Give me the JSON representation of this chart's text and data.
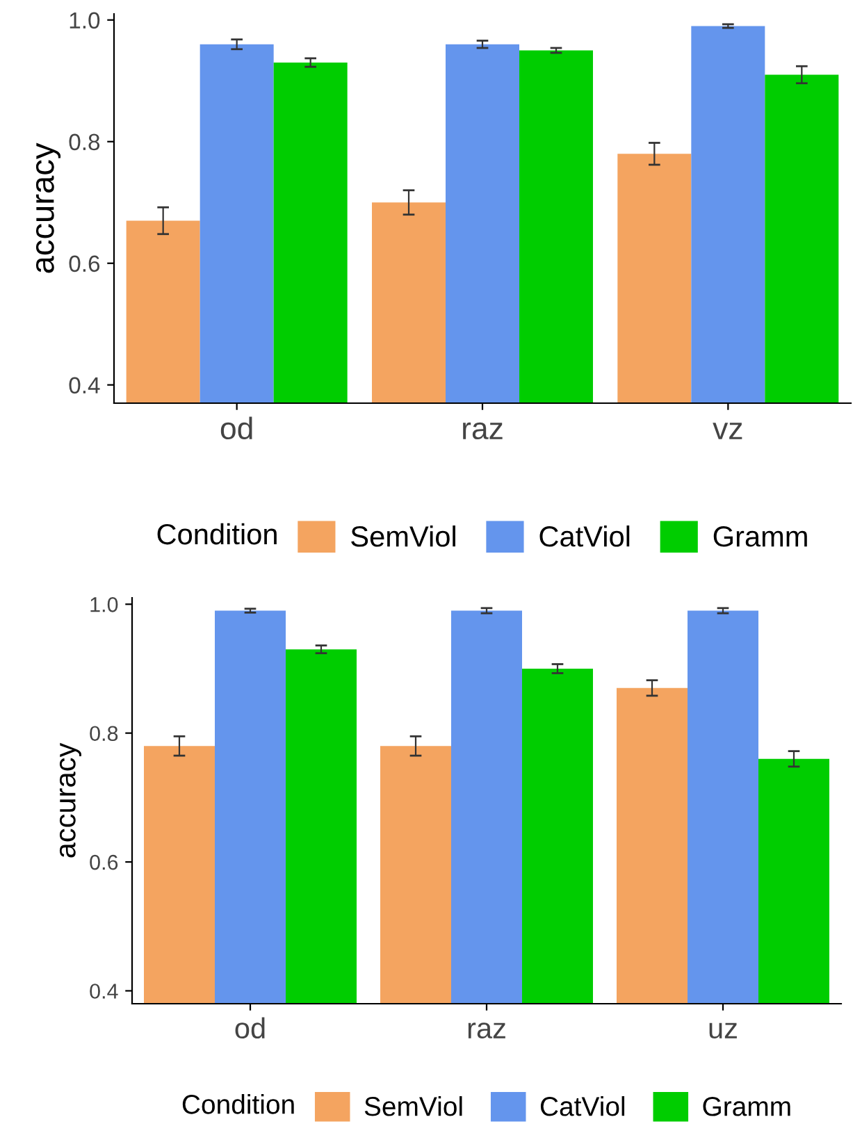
{
  "chart_data": [
    {
      "type": "bar",
      "ylabel": "accuracy",
      "legend_title": "Condition",
      "categories": [
        "od",
        "raz",
        "vz"
      ],
      "ylim": [
        0.37,
        1.01
      ],
      "yticks": [
        0.4,
        0.6,
        0.8,
        {
          "value": 1,
          "label": "1.0"
        }
      ],
      "grid": false,
      "legend": "bottom",
      "series": [
        {
          "name": "SemViol",
          "color": "#f4a460",
          "values": [
            0.67,
            0.7,
            0.78
          ],
          "errors": [
            0.022,
            0.02,
            0.018
          ]
        },
        {
          "name": "CatViol",
          "color": "#6495ed",
          "values": [
            0.96,
            0.96,
            0.99
          ],
          "errors": [
            0.008,
            0.006,
            0.003
          ]
        },
        {
          "name": "Gramm",
          "color": "#00cd00",
          "values": [
            0.93,
            0.95,
            0.91
          ],
          "errors": [
            0.007,
            0.004,
            0.014
          ]
        }
      ]
    },
    {
      "type": "bar",
      "ylabel": "accuracy",
      "legend_title": "Condition",
      "categories": [
        "od",
        "raz",
        "uz"
      ],
      "ylim": [
        0.38,
        1.01
      ],
      "yticks": [
        0.4,
        0.6,
        0.8,
        {
          "value": 1,
          "label": "1.0"
        }
      ],
      "grid": false,
      "legend": "bottom",
      "series": [
        {
          "name": "SemViol",
          "color": "#f4a460",
          "values": [
            0.78,
            0.78,
            0.87
          ],
          "errors": [
            0.015,
            0.015,
            0.012
          ]
        },
        {
          "name": "CatViol",
          "color": "#6495ed",
          "values": [
            0.99,
            0.99,
            0.99
          ],
          "errors": [
            0.003,
            0.004,
            0.004
          ]
        },
        {
          "name": "Gramm",
          "color": "#00cd00",
          "values": [
            0.93,
            0.9,
            0.76
          ],
          "errors": [
            0.006,
            0.007,
            0.012
          ]
        }
      ]
    }
  ]
}
